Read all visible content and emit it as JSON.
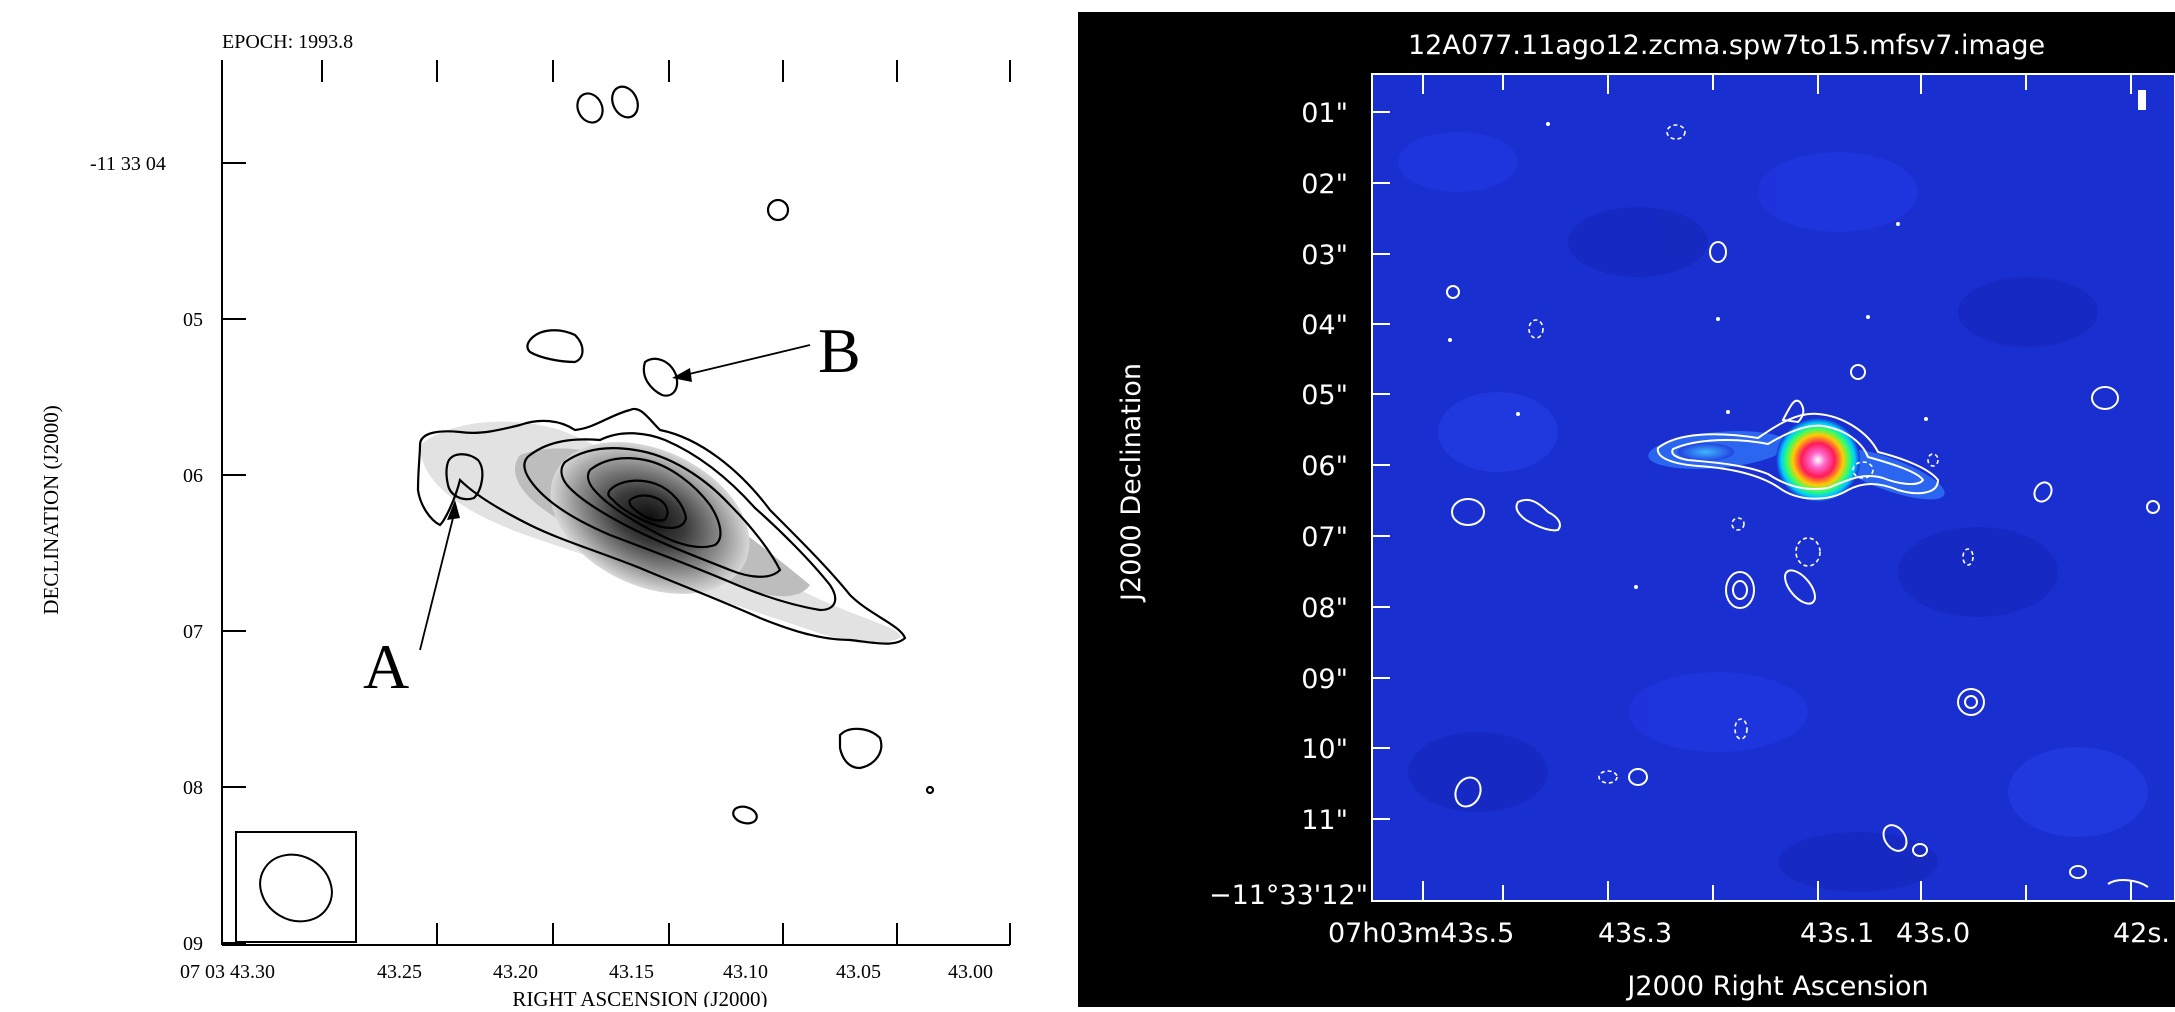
{
  "left_panel": {
    "epoch": "EPOCH: 1993.8",
    "dec_axis_title": "DECLINATION (J2000)",
    "ra_axis_title": "RIGHT ASCENSION (J2000)",
    "dec_ticks": [
      "-11 33 04",
      "05",
      "06",
      "07",
      "08",
      "09"
    ],
    "ra_ticks": [
      "07 03 43.30",
      "43.25",
      "43.20",
      "43.15",
      "43.10",
      "43.05",
      "43.00"
    ],
    "label_a": "A",
    "label_b": "B"
  },
  "right_panel": {
    "title": "12A077.11ago12.zcma.spw7to15.mfsv7.image",
    "dec_axis_title": "J2000 Declination",
    "ra_axis_title": "J2000 Right Ascension",
    "dec_ticks": [
      "01\"",
      "02\"",
      "03\"",
      "04\"",
      "05\"",
      "06\"",
      "07\"",
      "08\"",
      "09\"",
      "10\"",
      "11\""
    ],
    "dec_origin_label": "−11°33'12\"",
    "ra_tick_labels": [
      "07h03m43s.5",
      "43s.3",
      "43s.1",
      "43s.0",
      "42s."
    ]
  },
  "colors": {
    "left_background": "#ffffff",
    "right_background": "#000000",
    "map_blue": "#1a2fd0",
    "contour_white": "#ffffff"
  }
}
